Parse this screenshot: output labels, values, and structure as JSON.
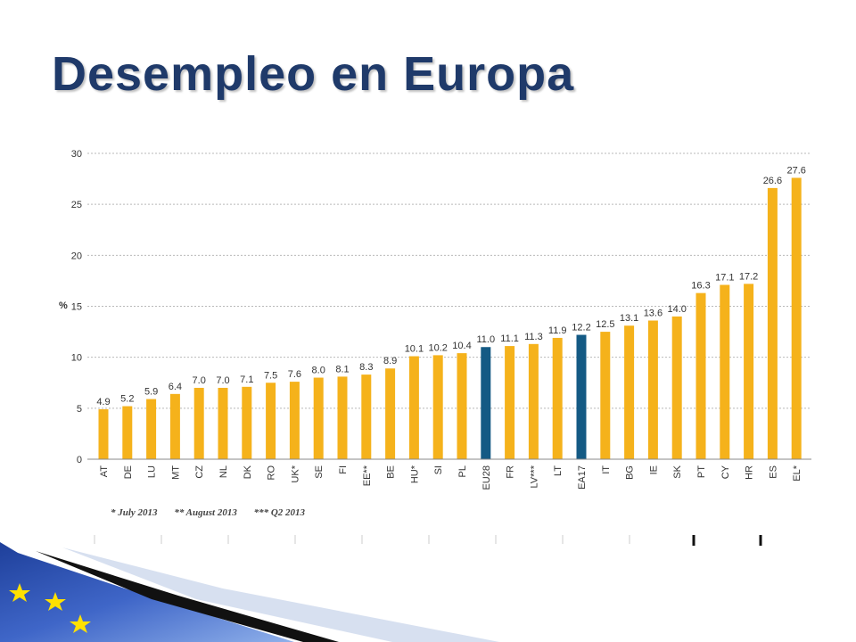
{
  "slide": {
    "title": "Desempleo en Europa"
  },
  "footnotes": [
    "* July 2013",
    "** August 2013",
    "*** Q2 2013"
  ],
  "colors": {
    "bar": "#f5b21b",
    "highlight": "#145a84",
    "title": "#1f3a6a",
    "grid": "#b9b9b9"
  },
  "chart_data": {
    "type": "bar",
    "ylabel": "%",
    "ylim": [
      0,
      30
    ],
    "yticks": [
      0,
      5,
      10,
      15,
      20,
      25,
      30
    ],
    "grid": true,
    "categories": [
      "AT",
      "DE",
      "LU",
      "MT",
      "CZ",
      "NL",
      "DK",
      "RO",
      "UK*",
      "SE",
      "FI",
      "EE**",
      "BE",
      "HU*",
      "SI",
      "PL",
      "EU28",
      "FR",
      "LV***",
      "LT",
      "EA17",
      "IT",
      "BG",
      "IE",
      "SK",
      "PT",
      "CY",
      "HR",
      "ES",
      "EL*"
    ],
    "values": [
      4.9,
      5.2,
      5.9,
      6.4,
      7.0,
      7.0,
      7.1,
      7.5,
      7.6,
      8.0,
      8.1,
      8.3,
      8.9,
      10.1,
      10.2,
      10.4,
      11.0,
      11.1,
      11.3,
      11.9,
      12.2,
      12.5,
      13.1,
      13.6,
      14.0,
      16.3,
      17.1,
      17.2,
      26.6,
      27.6
    ],
    "data_labels": [
      "4.9",
      "5.2",
      "5.9",
      "6.4",
      "7.0",
      "7.0",
      "7.1",
      "7.5",
      "7.6",
      "8.0",
      "8.1",
      "8.3",
      "8.9",
      "10.1",
      "10.2",
      "10.4",
      "11.0",
      "11.1",
      "11.3",
      "11.9",
      "12.2",
      "12.5",
      "13.1",
      "13.6",
      "14.0",
      "16.3",
      "17.1",
      "17.2",
      "26.6",
      "27.6"
    ],
    "highlighted": [
      "EU28",
      "EA17"
    ]
  }
}
